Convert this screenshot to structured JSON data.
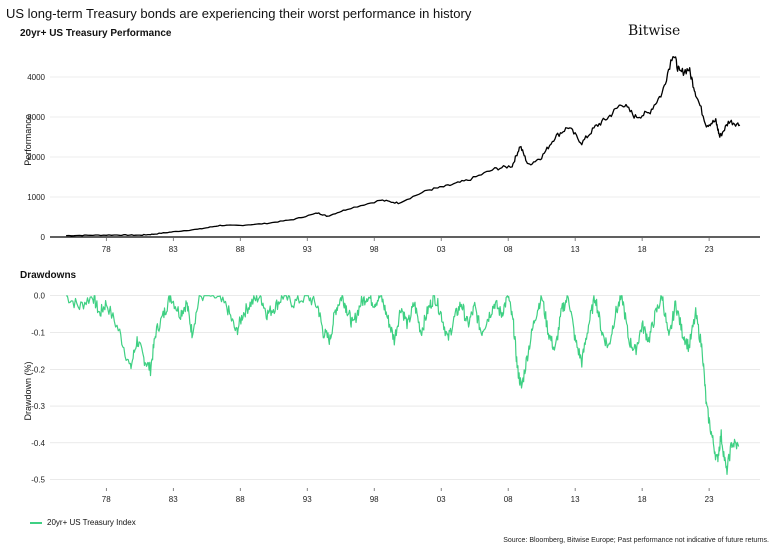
{
  "header": {
    "title": "US long-term Treasury bonds are experiencing their worst performance in history",
    "logo": "Bitwise"
  },
  "footer": {
    "legend_label": "20yr+ US Treasury Index",
    "source": "Source: Bloomberg, Bitwise Europe; Past performance not indicative of future returns."
  },
  "colors": {
    "performance_line": "#000000",
    "drawdown_line": "#3fd083",
    "grid": "#dddddd"
  },
  "chart_data": [
    {
      "type": "line",
      "title": "20yr+ US Treasury Performance",
      "xlabel": "",
      "ylabel": "Performance",
      "xlim": [
        1973.8,
        2026.8
      ],
      "ylim": [
        0,
        4800
      ],
      "yticks": [
        0,
        1000,
        2000,
        3000,
        4000
      ],
      "ytick_labels": [
        "0",
        "1000",
        "2000",
        "3000",
        "4000"
      ],
      "xticks": [
        1978,
        1983,
        1988,
        1993,
        1998,
        2003,
        2008,
        2013,
        2018,
        2023
      ],
      "xtick_labels": [
        "78",
        "83",
        "88",
        "93",
        "98",
        "03",
        "08",
        "13",
        "18",
        "23"
      ],
      "series": [
        {
          "name": "20yr+ US Treasury Index",
          "x": [
            1975.0,
            1977,
            1979,
            1980.5,
            1981.5,
            1983,
            1985,
            1986.5,
            1988,
            1990,
            1992,
            1993.8,
            1994.5,
            1996,
            1998.5,
            1999.8,
            2002,
            2003.5,
            2005,
            2007,
            2008.3,
            2008.9,
            2009.5,
            2010.5,
            2011.5,
            2012.5,
            2013.5,
            2014.5,
            2015.5,
            2016.5,
            2017.5,
            2018.5,
            2019.5,
            2020.3,
            2020.8,
            2021.5,
            2022.0,
            2022.8,
            2023.5,
            2023.8,
            2024.5,
            2025.3
          ],
          "values": [
            35,
            45,
            50,
            45,
            70,
            130,
            200,
            290,
            290,
            340,
            440,
            600,
            520,
            700,
            920,
            850,
            1170,
            1280,
            1420,
            1700,
            1780,
            2280,
            1800,
            2000,
            2500,
            2750,
            2350,
            2750,
            3000,
            3350,
            3000,
            3100,
            3600,
            4600,
            4100,
            4200,
            3600,
            2800,
            2900,
            2500,
            2900,
            2800
          ]
        }
      ]
    },
    {
      "type": "line",
      "title": "Drawdowns",
      "xlabel": "",
      "ylabel": "Drawdown (%)",
      "xlim": [
        1973.8,
        2026.8
      ],
      "ylim": [
        -0.52,
        0.01
      ],
      "yticks": [
        0.0,
        -0.1,
        -0.2,
        -0.3,
        -0.4,
        -0.5
      ],
      "ytick_labels": [
        "0.0",
        "-0.1",
        "-0.2",
        "-0.3",
        "-0.4",
        "-0.5"
      ],
      "xticks": [
        1978,
        1983,
        1988,
        1993,
        1998,
        2003,
        2008,
        2013,
        2018,
        2023
      ],
      "xtick_labels": [
        "78",
        "83",
        "88",
        "93",
        "98",
        "03",
        "08",
        "13",
        "18",
        "23"
      ],
      "series": [
        {
          "name": "20yr+ US Treasury Index",
          "x": [
            1975.0,
            1976.0,
            1977.0,
            1977.5,
            1978.0,
            1979.0,
            1979.8,
            1980.3,
            1980.8,
            1981.3,
            1981.7,
            1982.3,
            1982.8,
            1983.5,
            1984.0,
            1984.4,
            1985.0,
            1986.0,
            1987.0,
            1987.7,
            1988.2,
            1988.8,
            1989.5,
            1990.0,
            1990.6,
            1991.2,
            1992.0,
            1993.0,
            1993.8,
            1994.2,
            1994.7,
            1995.1,
            1995.6,
            1996.0,
            1996.4,
            1997.0,
            1997.5,
            1998.0,
            1998.5,
            1999.0,
            1999.5,
            2000.0,
            2000.5,
            2001.0,
            2001.5,
            2002.0,
            2002.5,
            2003.0,
            2003.5,
            2004.0,
            2004.5,
            2005.0,
            2005.5,
            2006.0,
            2006.5,
            2007.0,
            2007.5,
            2008.0,
            2008.4,
            2008.7,
            2009.0,
            2009.5,
            2010.0,
            2010.5,
            2011.0,
            2011.5,
            2012.0,
            2012.5,
            2013.0,
            2013.5,
            2014.0,
            2014.5,
            2015.0,
            2015.5,
            2016.0,
            2016.5,
            2017.0,
            2017.5,
            2018.0,
            2018.5,
            2019.0,
            2019.5,
            2020.0,
            2020.5,
            2021.0,
            2021.5,
            2022.0,
            2022.5,
            2022.8,
            2023.2,
            2023.6,
            2023.9,
            2024.3,
            2024.7,
            2025.2
          ],
          "values": [
            0.0,
            -0.03,
            0.0,
            -0.05,
            -0.02,
            -0.1,
            -0.2,
            -0.12,
            -0.17,
            -0.2,
            -0.1,
            -0.05,
            0.0,
            -0.05,
            -0.02,
            -0.1,
            0.0,
            0.0,
            -0.03,
            -0.1,
            -0.05,
            -0.02,
            0.0,
            -0.05,
            -0.03,
            0.0,
            -0.02,
            0.0,
            -0.03,
            -0.1,
            -0.12,
            -0.04,
            0.0,
            -0.04,
            -0.08,
            -0.02,
            0.0,
            -0.02,
            0.0,
            -0.06,
            -0.12,
            -0.03,
            -0.08,
            -0.02,
            -0.1,
            -0.04,
            0.0,
            -0.05,
            -0.12,
            -0.06,
            -0.02,
            -0.08,
            -0.03,
            -0.1,
            -0.06,
            -0.02,
            -0.05,
            0.0,
            -0.08,
            -0.2,
            -0.25,
            -0.15,
            -0.06,
            0.0,
            -0.1,
            -0.15,
            -0.04,
            0.0,
            -0.12,
            -0.18,
            -0.08,
            0.0,
            -0.1,
            -0.14,
            -0.05,
            0.0,
            -0.12,
            -0.15,
            -0.08,
            -0.12,
            -0.05,
            0.0,
            -0.12,
            -0.02,
            -0.1,
            -0.14,
            -0.05,
            -0.15,
            -0.3,
            -0.38,
            -0.45,
            -0.38,
            -0.48,
            -0.4,
            -0.41
          ]
        }
      ]
    }
  ]
}
